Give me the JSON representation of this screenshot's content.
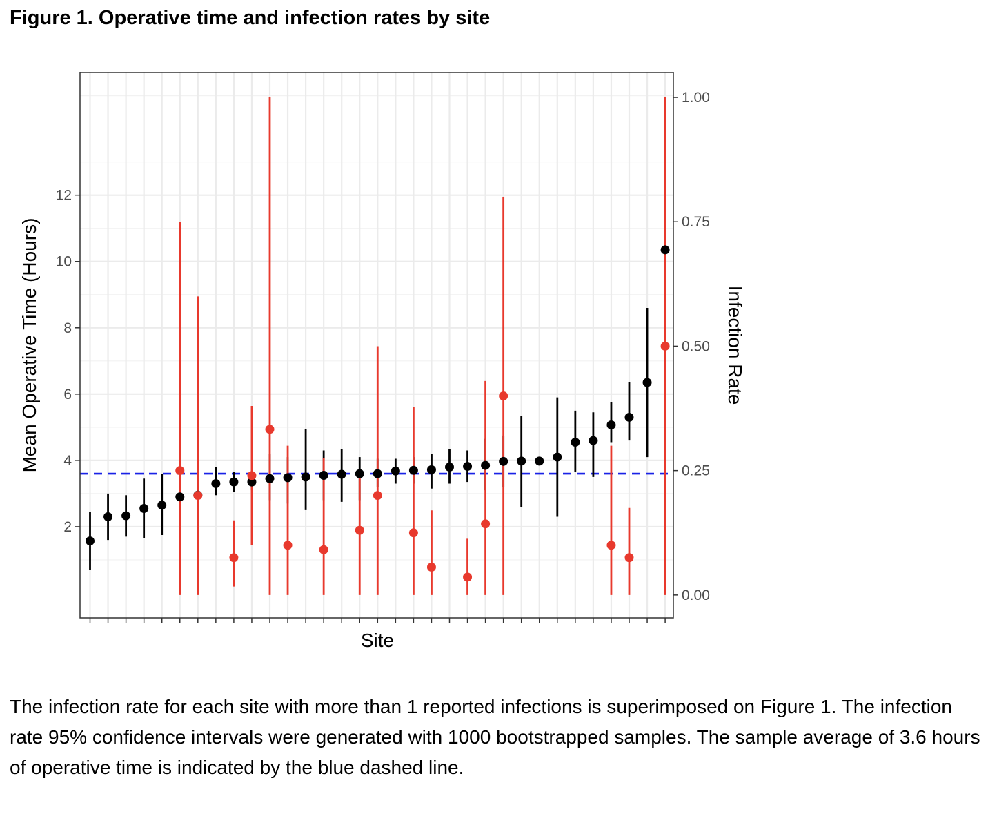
{
  "figure": {
    "title": "Figure 1. Operative time and infection rates by site",
    "caption": "The infection rate for each site with more than 1 reported infections is superimposed on Figure 1. The infection rate 95% confidence intervals were generated with 1000 bootstrapped samples. The sample average of 3.6 hours of operative time is indicated by the blue dashed line."
  },
  "chart_data": {
    "type": "scatter",
    "title": "",
    "xlabel": "Site",
    "ylabel": "Mean Operative Time (Hours)",
    "y2label": "Infection Rate",
    "ylim": [
      -0.75,
      15.7
    ],
    "y2lim": [
      -0.046,
      1.05
    ],
    "yticks": [
      2,
      4,
      6,
      8,
      10,
      12
    ],
    "ytick_labels": [
      "2",
      "4",
      "6",
      "8",
      "10",
      "12"
    ],
    "y2ticks": [
      0,
      0.25,
      0.5,
      0.75,
      1.0
    ],
    "y2tick_labels": [
      "0.00",
      "0.25",
      "0.50",
      "0.75",
      "1.00"
    ],
    "grid": true,
    "colors": {
      "operative_time": "#000000",
      "infection_rate": "#e8392d",
      "average_line": "#1a22e6"
    },
    "reference_line": {
      "axis": "y",
      "value": 3.6,
      "style": "dashed"
    },
    "series": [
      {
        "name": "Mean Operative Time",
        "axis": "left",
        "x": [
          1,
          2,
          3,
          4,
          5,
          6,
          7,
          8,
          9,
          10,
          11,
          12,
          13,
          14,
          15,
          16,
          17,
          18,
          19,
          20,
          21,
          22,
          23,
          24,
          25,
          26,
          27,
          28,
          29,
          30,
          31,
          32,
          33
        ],
        "values": [
          1.57,
          2.3,
          2.33,
          2.55,
          2.65,
          2.9,
          2.95,
          3.3,
          3.35,
          3.35,
          3.45,
          3.48,
          3.5,
          3.55,
          3.58,
          3.6,
          3.6,
          3.68,
          3.7,
          3.72,
          3.8,
          3.82,
          3.85,
          3.97,
          3.98,
          3.98,
          4.1,
          4.55,
          4.6,
          5.07,
          5.3,
          6.35,
          10.35
        ],
        "lower": [
          0.7,
          1.6,
          1.7,
          1.65,
          1.75,
          2.15,
          2.65,
          2.95,
          3.05,
          3.1,
          2.8,
          2.7,
          2.5,
          2.8,
          2.75,
          2.8,
          3.2,
          3.3,
          3.3,
          3.15,
          3.3,
          3.35,
          3.1,
          3.2,
          2.6,
          3.85,
          2.3,
          3.65,
          3.5,
          4.55,
          4.6,
          4.1,
          7.5
        ],
        "upper": [
          2.45,
          3.0,
          2.95,
          3.45,
          3.6,
          3.65,
          3.25,
          3.8,
          3.65,
          3.6,
          4.2,
          4.1,
          4.95,
          4.3,
          4.35,
          4.1,
          4.05,
          4.05,
          4.1,
          4.2,
          4.35,
          4.3,
          4.65,
          4.75,
          5.35,
          4.1,
          5.9,
          5.5,
          5.45,
          5.75,
          6.35,
          8.6,
          13.3
        ]
      },
      {
        "name": "Infection Rate",
        "axis": "right",
        "x": [
          6,
          7,
          9,
          10,
          11,
          12,
          14,
          16,
          17,
          19,
          20,
          22,
          23,
          24,
          30,
          31,
          33
        ],
        "values": [
          0.25,
          0.2,
          0.075,
          0.24,
          0.333,
          0.1,
          0.091,
          0.13,
          0.2,
          0.125,
          0.056,
          0.036,
          0.143,
          0.4,
          0.1,
          0.075,
          0.5
        ],
        "lower": [
          0,
          0,
          0.017,
          0.1,
          0,
          0,
          0,
          0,
          0,
          0,
          0,
          0,
          0,
          0,
          0,
          0,
          0
        ],
        "upper": [
          0.75,
          0.6,
          0.15,
          0.38,
          1.0,
          0.3,
          0.275,
          0.24,
          0.5,
          0.378,
          0.17,
          0.113,
          0.43,
          0.8,
          0.3,
          0.175,
          1.0
        ]
      }
    ],
    "n_sites": 33
  }
}
